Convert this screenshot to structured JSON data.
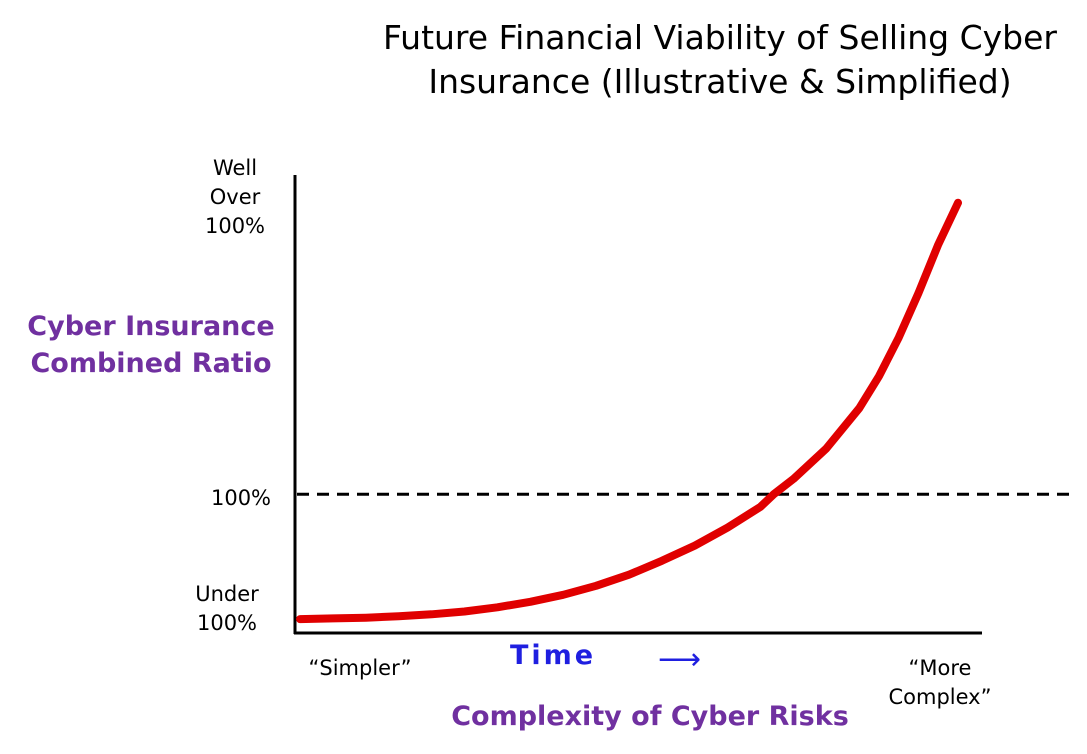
{
  "chart_data": {
    "type": "line",
    "title_lines": [
      "Future Financial Viability of Selling Cyber",
      "Insurance (Illustrative & Simplified)"
    ],
    "ylabel_lines": [
      "Cyber Insurance",
      "Combined Ratio"
    ],
    "xlabel": "Complexity of Cyber Risks",
    "y_ticks": {
      "top": [
        "Well",
        "Over",
        "100%"
      ],
      "middle": "100%",
      "bottom": [
        "Under",
        "100%"
      ]
    },
    "x_ticks": {
      "left": "“Simpler”",
      "right": [
        "“More",
        "Complex”"
      ]
    },
    "time_label": "Time",
    "time_arrow": "⟶",
    "reference_line": {
      "y": 1.0,
      "style": "dashed"
    },
    "series": [
      {
        "color": "#E00000",
        "x": [
          0,
          0.05,
          0.1,
          0.15,
          0.2,
          0.25,
          0.3,
          0.35,
          0.4,
          0.45,
          0.5,
          0.55,
          0.6,
          0.65,
          0.7,
          0.72,
          0.75,
          0.8,
          0.85,
          0.88,
          0.91,
          0.94,
          0.97,
          1.0
        ],
        "y": [
          0.1,
          0.105,
          0.11,
          0.12,
          0.135,
          0.155,
          0.185,
          0.225,
          0.275,
          0.34,
          0.42,
          0.52,
          0.63,
          0.76,
          0.91,
          1.0,
          1.11,
          1.33,
          1.62,
          1.85,
          2.13,
          2.45,
          2.8,
          3.1
        ]
      }
    ],
    "xlim": [
      0,
      1.0
    ],
    "ylim": [
      0,
      3.3
    ],
    "colors": {
      "curve": "#E00000",
      "axis_label": "#7030A0",
      "time": "#1F1FE0"
    }
  }
}
